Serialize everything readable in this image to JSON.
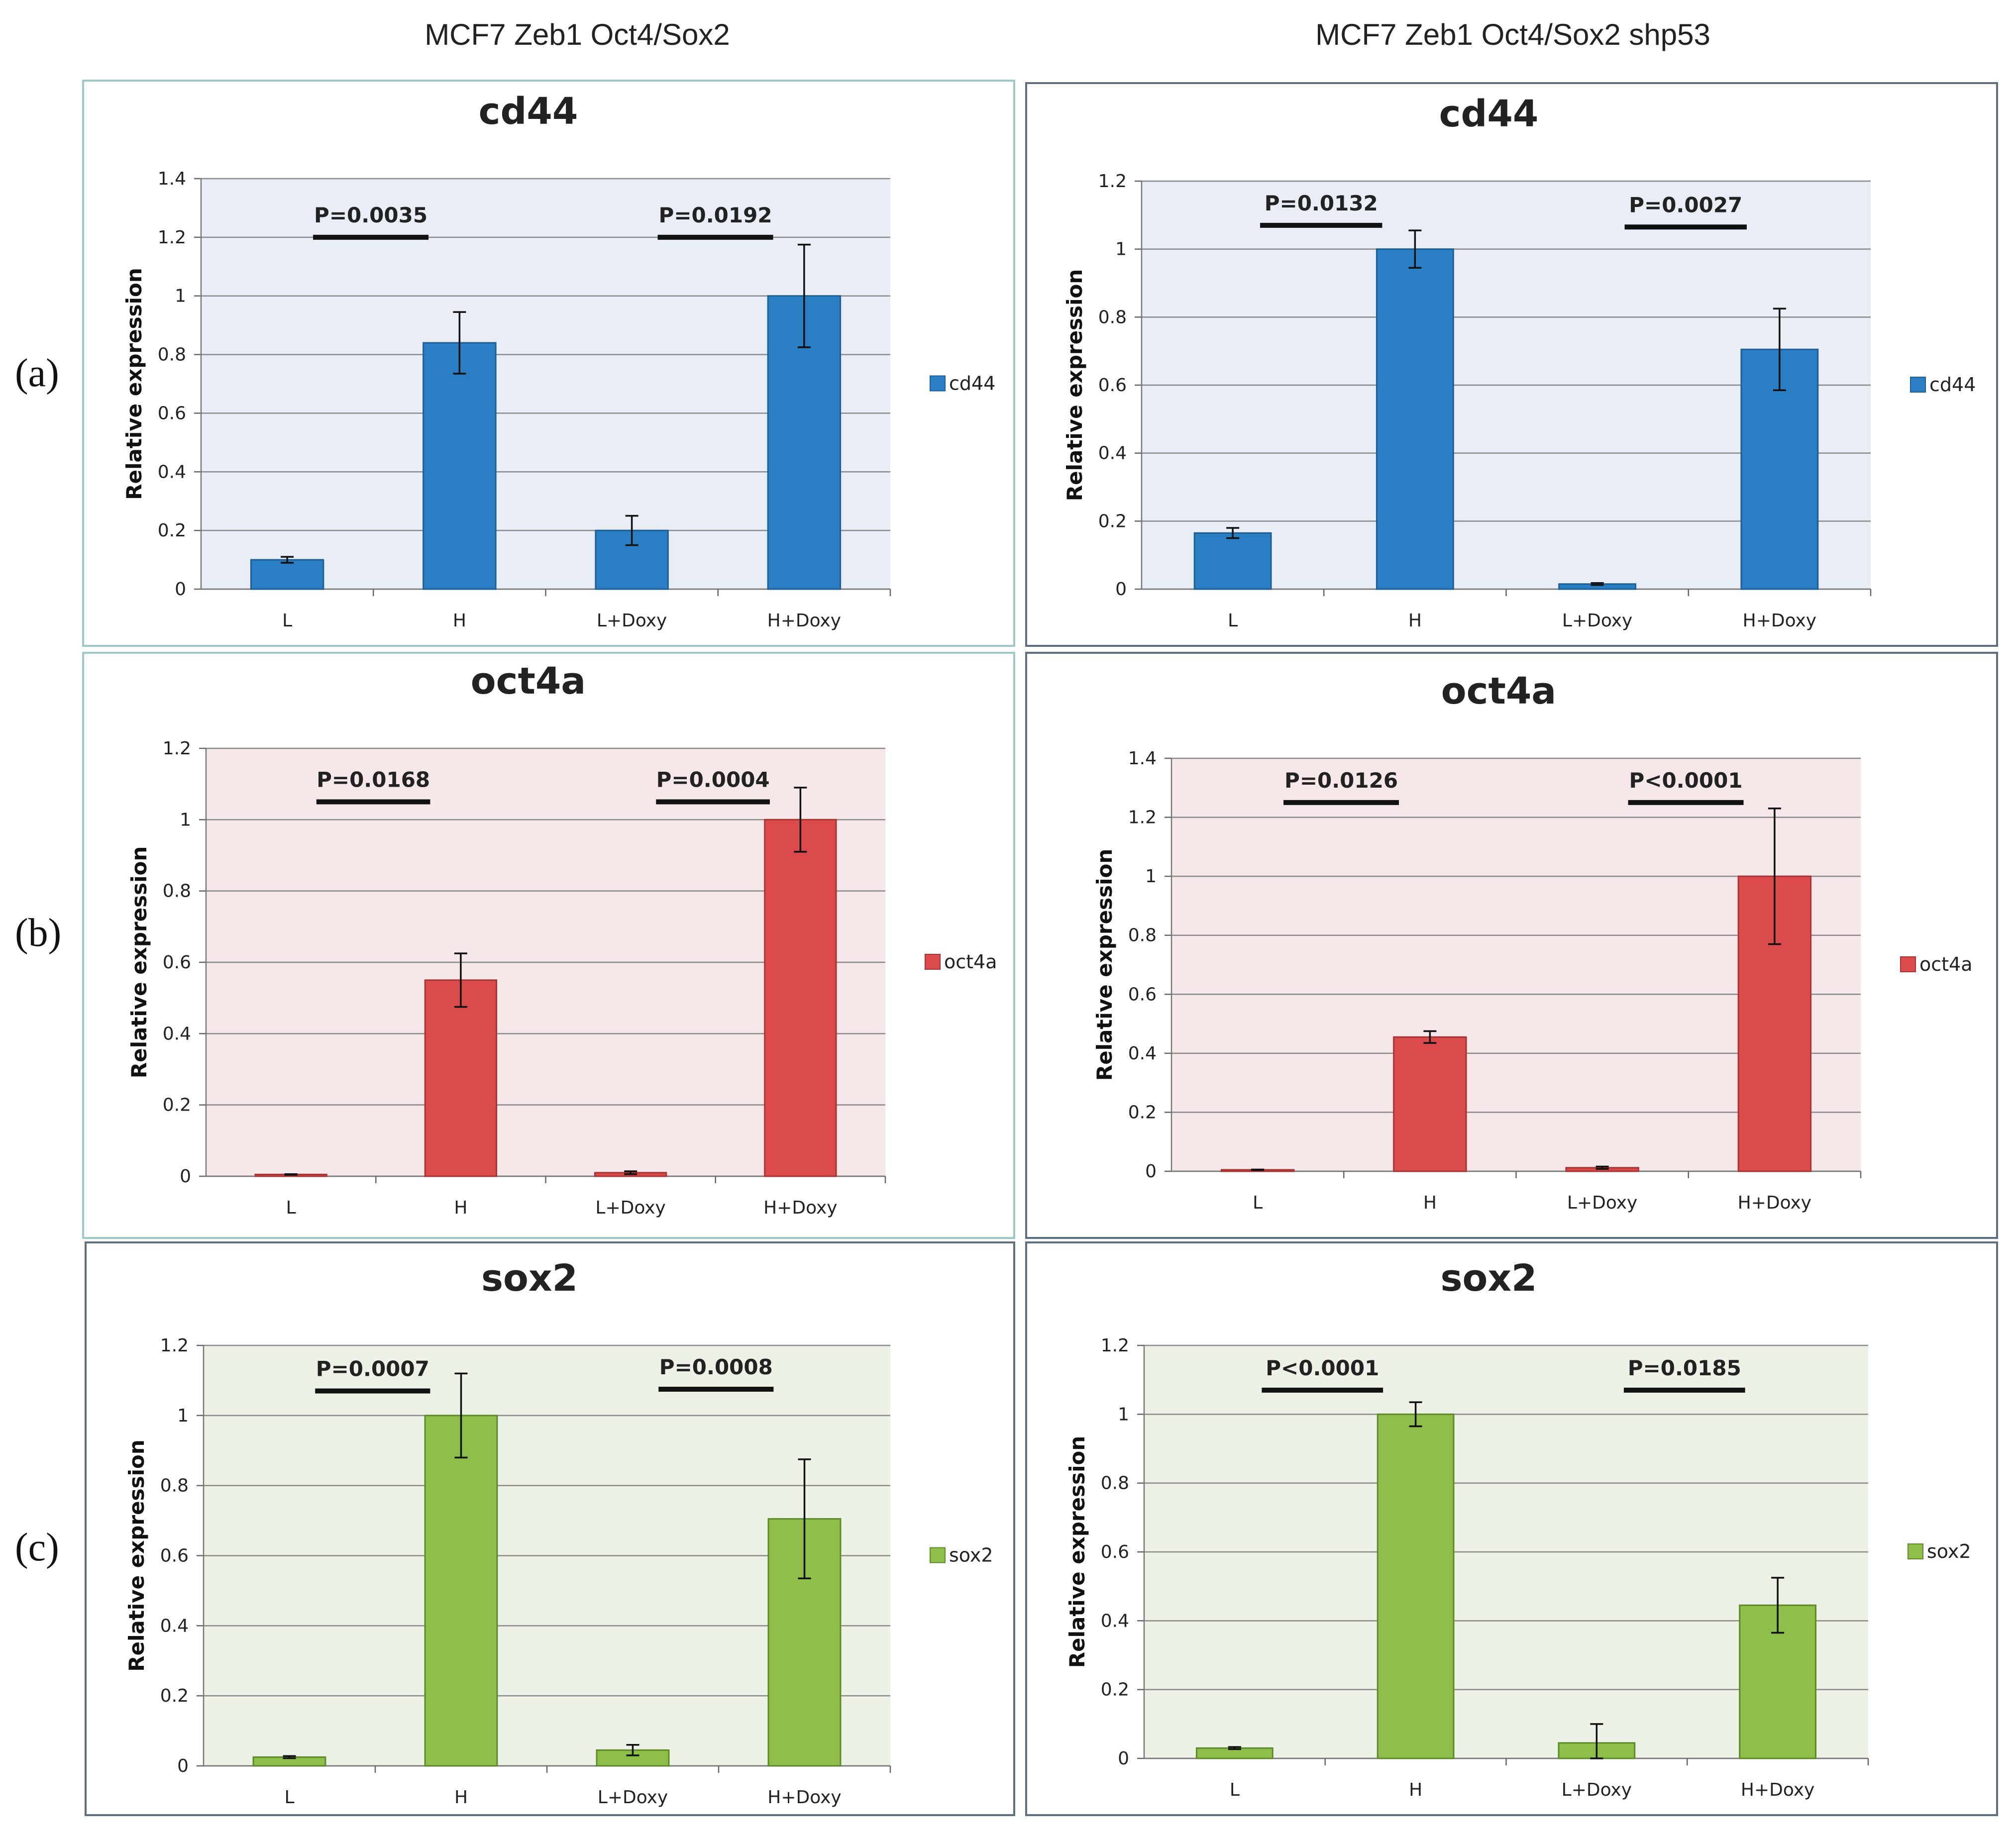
{
  "column_titles": [
    "MCF7 Zeb1 Oct4/Sox2",
    "MCF7 Zeb1 Oct4/Sox2 shp53"
  ],
  "row_labels": [
    "(a)",
    "(b)",
    "(c)"
  ],
  "colors": {
    "cd44": {
      "bar": "#2a7fc4",
      "edge": "#1e5f95",
      "bg": "#e9edf6"
    },
    "oct4a": {
      "bar": "#dc4b4b",
      "edge": "#a93434",
      "bg": "#f6e8e8"
    },
    "sox2": {
      "bar": "#8dbf4a",
      "edge": "#5e8a2a",
      "bg": "#edf2e7"
    }
  },
  "chart_data": [
    {
      "type": "bar",
      "title": "cd44",
      "ylabel": "Relative expression",
      "ylim": [
        0,
        1.4
      ],
      "yticks": [
        "0",
        "0.2",
        "0.4",
        "0.6",
        "0.8",
        "1",
        "1.2",
        "1.4"
      ],
      "categories": [
        "L",
        "H",
        "L+Doxy",
        "H+Doxy"
      ],
      "series": [
        {
          "name": "cd44",
          "values": [
            0.1,
            0.84,
            0.2,
            1.0
          ],
          "errors": [
            0.01,
            0.105,
            0.05,
            0.175
          ]
        }
      ],
      "pvalues": [
        {
          "text": "P=0.0035",
          "y": 1.2
        },
        {
          "text": "P=0.0192",
          "y": 1.2
        }
      ],
      "legend": "right"
    },
    {
      "type": "bar",
      "title": "cd44",
      "ylabel": "Relative expression",
      "ylim": [
        0,
        1.2
      ],
      "yticks": [
        "0",
        "0.2",
        "0.4",
        "0.6",
        "0.8",
        "1",
        "1.2"
      ],
      "categories": [
        "L",
        "H",
        "L+Doxy",
        "H+Doxy"
      ],
      "series": [
        {
          "name": "cd44",
          "values": [
            0.165,
            1.0,
            0.015,
            0.705
          ],
          "errors": [
            0.015,
            0.055,
            0.003,
            0.12
          ]
        }
      ],
      "pvalues": [
        {
          "text": "P=0.0132",
          "y": 1.07
        },
        {
          "text": "P=0.0027",
          "y": 1.065
        }
      ],
      "legend": "right"
    },
    {
      "type": "bar",
      "title": "oct4a",
      "ylabel": "Relative expression",
      "ylim": [
        0,
        1.2
      ],
      "yticks": [
        "0",
        "0.2",
        "0.4",
        "0.6",
        "0.8",
        "1",
        "1.2"
      ],
      "categories": [
        "L",
        "H",
        "L+Doxy",
        "H+Doxy"
      ],
      "series": [
        {
          "name": "oct4a",
          "values": [
            0.005,
            0.55,
            0.01,
            1.0
          ],
          "errors": [
            0.001,
            0.075,
            0.004,
            0.09
          ]
        }
      ],
      "pvalues": [
        {
          "text": "P=0.0168",
          "y": 1.05
        },
        {
          "text": "P=0.0004",
          "y": 1.05
        }
      ],
      "legend": "right"
    },
    {
      "type": "bar",
      "title": "oct4a",
      "ylabel": "Relative expression",
      "ylim": [
        0,
        1.4
      ],
      "yticks": [
        "0",
        "0.2",
        "0.4",
        "0.6",
        "0.8",
        "1",
        "1.2",
        "1.4"
      ],
      "categories": [
        "L",
        "H",
        "L+Doxy",
        "H+Doxy"
      ],
      "series": [
        {
          "name": "oct4a",
          "values": [
            0.005,
            0.455,
            0.012,
            1.0
          ],
          "errors": [
            0.001,
            0.02,
            0.004,
            0.23
          ]
        }
      ],
      "pvalues": [
        {
          "text": "P=0.0126",
          "y": 1.25
        },
        {
          "text": "P<0.0001",
          "y": 1.25
        }
      ],
      "legend": "right"
    },
    {
      "type": "bar",
      "title": "sox2",
      "ylabel": "Relative expression",
      "ylim": [
        0,
        1.2
      ],
      "yticks": [
        "0",
        "0.2",
        "0.4",
        "0.6",
        "0.8",
        "1",
        "1.2"
      ],
      "categories": [
        "L",
        "H",
        "L+Doxy",
        "H+Doxy"
      ],
      "series": [
        {
          "name": "sox2",
          "values": [
            0.025,
            1.0,
            0.045,
            0.705
          ],
          "errors": [
            0.003,
            0.12,
            0.015,
            0.17
          ]
        }
      ],
      "pvalues": [
        {
          "text": "P=0.0007",
          "y": 1.07
        },
        {
          "text": "P=0.0008",
          "y": 1.075
        }
      ],
      "legend": "right"
    },
    {
      "type": "bar",
      "title": "sox2",
      "ylabel": "Relative expression",
      "ylim": [
        0,
        1.2
      ],
      "yticks": [
        "0",
        "0.2",
        "0.4",
        "0.6",
        "0.8",
        "1",
        "1.2"
      ],
      "categories": [
        "L",
        "H",
        "L+Doxy",
        "H+Doxy"
      ],
      "series": [
        {
          "name": "sox2",
          "values": [
            0.03,
            1.0,
            0.045,
            0.445
          ],
          "errors": [
            0.003,
            0.035,
            0.055,
            0.08
          ]
        }
      ],
      "pvalues": [
        {
          "text": "P<0.0001",
          "y": 1.07
        },
        {
          "text": "P=0.0185",
          "y": 1.07
        }
      ],
      "legend": "right"
    }
  ]
}
